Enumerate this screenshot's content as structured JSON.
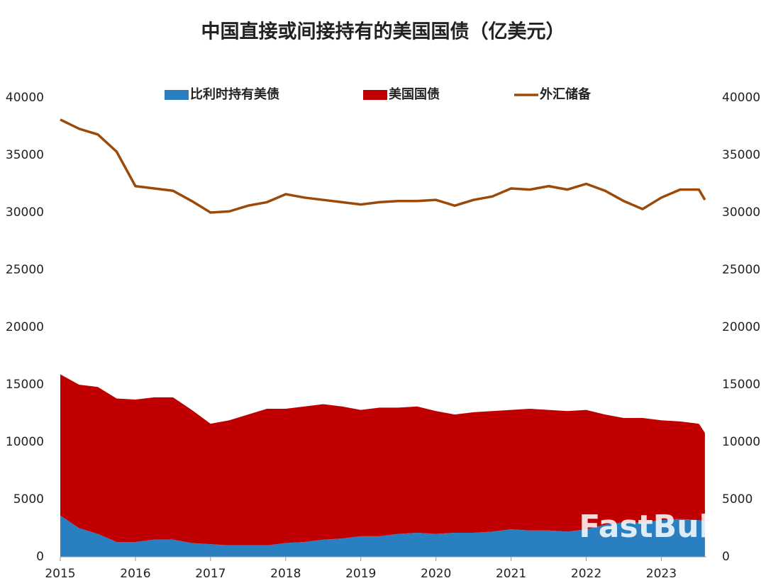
{
  "chart_data": {
    "type": "stacked-area-line",
    "title": "中国直接或间接持有的美国国债（亿美元）",
    "watermark": "FastBull",
    "x": [
      2015,
      2015.25,
      2015.5,
      2015.75,
      2016,
      2016.25,
      2016.5,
      2016.75,
      2017,
      2017.25,
      2017.5,
      2017.75,
      2018,
      2018.25,
      2018.5,
      2018.75,
      2019,
      2019.25,
      2019.5,
      2019.75,
      2020,
      2020.25,
      2020.5,
      2020.75,
      2021,
      2021.25,
      2021.5,
      2021.75,
      2022,
      2022.25,
      2022.5,
      2022.75,
      2023,
      2023.25,
      2023.5,
      2023.58
    ],
    "xlim": [
      2015,
      2023.6
    ],
    "xticks": [
      2015,
      2016,
      2017,
      2018,
      2019,
      2020,
      2021,
      2022,
      2023
    ],
    "ylim": [
      0,
      40000
    ],
    "yticks": [
      0,
      5000,
      10000,
      15000,
      20000,
      25000,
      30000,
      35000,
      40000
    ],
    "y2lim": [
      0,
      40000
    ],
    "y2ticks": [
      0,
      5000,
      10000,
      15000,
      20000,
      25000,
      30000,
      35000,
      40000
    ],
    "series": [
      {
        "name": "比利时持有美债",
        "kind": "area",
        "color": "#2a7fc0",
        "values": [
          3600,
          2500,
          2000,
          1300,
          1300,
          1500,
          1500,
          1200,
          1100,
          1000,
          1000,
          1000,
          1200,
          1300,
          1500,
          1600,
          1800,
          1800,
          2000,
          2100,
          2000,
          2100,
          2100,
          2200,
          2400,
          2300,
          2300,
          2200,
          2400,
          2800,
          3000,
          3000,
          3200,
          3300,
          3200,
          3100
        ]
      },
      {
        "name": "美国国债",
        "kind": "area",
        "color": "#c00000",
        "values": [
          12300,
          12500,
          12800,
          12500,
          12400,
          12400,
          12400,
          11600,
          10500,
          10900,
          11400,
          11900,
          11700,
          11800,
          11800,
          11500,
          11000,
          11200,
          11000,
          11000,
          10700,
          10300,
          10500,
          10500,
          10400,
          10600,
          10500,
          10500,
          10400,
          9600,
          9100,
          9100,
          8700,
          8500,
          8400,
          7700
        ]
      },
      {
        "name": "外汇储备",
        "kind": "line",
        "axis": "y2",
        "color": "#9c4a0a",
        "values": [
          38100,
          37300,
          36800,
          35300,
          32300,
          32100,
          31900,
          31000,
          30000,
          30100,
          30600,
          30900,
          31600,
          31300,
          31100,
          30900,
          30700,
          30900,
          31000,
          31000,
          31100,
          30600,
          31100,
          31400,
          32100,
          32000,
          32300,
          32000,
          32500,
          31900,
          31000,
          30300,
          31300,
          32000,
          32000,
          31100
        ]
      }
    ]
  }
}
